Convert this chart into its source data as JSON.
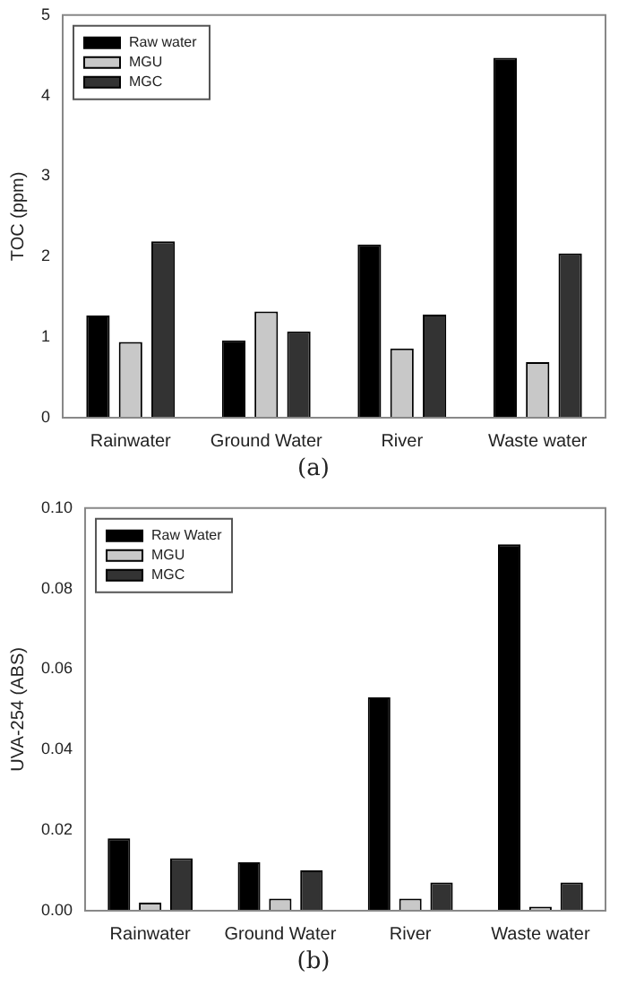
{
  "chart_data": [
    {
      "type": "bar",
      "ylabel": "TOC (ppm)",
      "categories": [
        "Rainwater",
        "Ground Water",
        "River",
        "Waste water"
      ],
      "ylim": [
        0,
        5
      ],
      "yticks": [
        0,
        1,
        2,
        3,
        4,
        5
      ],
      "grid": false,
      "legend": "top left",
      "annotations": [
        "(a)"
      ],
      "series": [
        {
          "name": "Raw water",
          "color": "#000000",
          "values": [
            1.27,
            0.96,
            2.15,
            4.47
          ]
        },
        {
          "name": "MGU",
          "color": "#c8c8c8",
          "values": [
            0.94,
            1.32,
            0.86,
            0.69
          ]
        },
        {
          "name": "MGC",
          "color": "#333333",
          "values": [
            2.19,
            1.07,
            1.28,
            2.04
          ]
        }
      ]
    },
    {
      "type": "bar",
      "ylabel": "UVA-254 (ABS)",
      "categories": [
        "Rainwater",
        "Ground Water",
        "River",
        "Waste water"
      ],
      "ylim": [
        0,
        0.1
      ],
      "yticks": [
        {
          "value": 0,
          "label": "0.00"
        },
        {
          "value": 0.02,
          "label": "0.02"
        },
        {
          "value": 0.04,
          "label": "0.04"
        },
        {
          "value": 0.06,
          "label": "0.06"
        },
        {
          "value": 0.08,
          "label": "0.08"
        },
        {
          "value": 0.1,
          "label": "0.10"
        }
      ],
      "grid": false,
      "legend": "top left",
      "annotations": [
        "(b)"
      ],
      "series": [
        {
          "name": "Raw Water",
          "color": "#000000",
          "values": [
            0.018,
            0.012,
            0.053,
            0.091
          ]
        },
        {
          "name": "MGU",
          "color": "#c8c8c8",
          "values": [
            0.002,
            0.003,
            0.003,
            0.001
          ]
        },
        {
          "name": "MGC",
          "color": "#333333",
          "values": [
            0.013,
            0.01,
            0.007,
            0.007
          ]
        }
      ]
    }
  ]
}
